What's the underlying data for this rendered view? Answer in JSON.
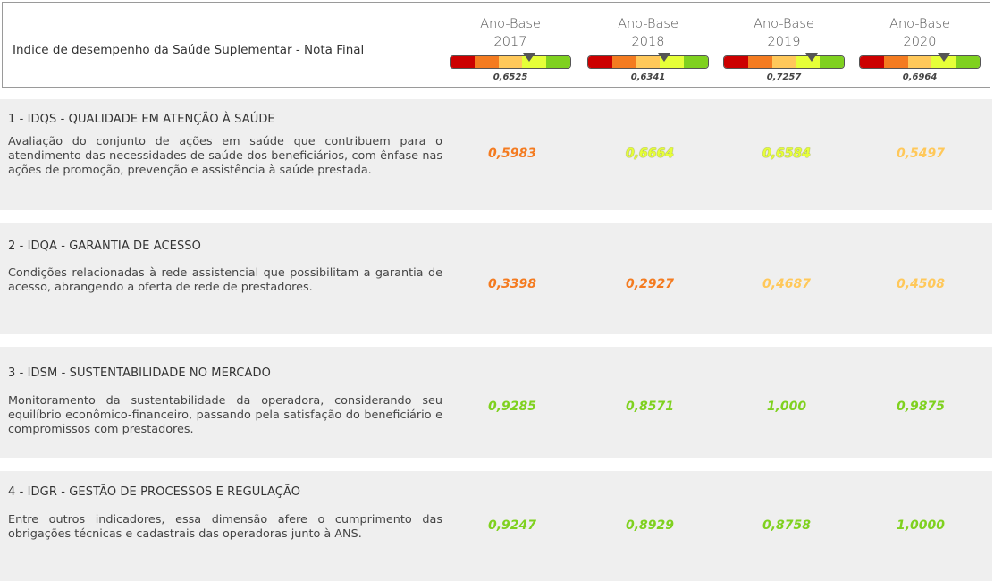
{
  "header": {
    "title": "Indice de desempenho da Saúde Suplementar - Nota Final",
    "years": [
      {
        "label_top": "Ano-Base",
        "label_year": "2017",
        "value": "0,6525",
        "gauge_level": 0.6525
      },
      {
        "label_top": "Ano-Base",
        "label_year": "2018",
        "value": "0,6341",
        "gauge_level": 0.6341
      },
      {
        "label_top": "Ano-Base",
        "label_year": "2019",
        "value": "0,7257",
        "gauge_level": 0.7257
      },
      {
        "label_top": "Ano-Base",
        "label_year": "2020",
        "value": "0,6964",
        "gauge_level": 0.6964
      }
    ],
    "gauge_colors": [
      "#cc0000",
      "#f47b20",
      "#ffc85a",
      "#e6ff38",
      "#7fd11f"
    ]
  },
  "sections": [
    {
      "title": "1 - IDQS - QUALIDADE EM ATENÇÃO À SAÚDE",
      "description": "Avaliação do conjunto de ações em saúde que contribuem para o atendimento das necessidades de saúde dos beneficiários, com ênfase nas ações de promoção, prevenção e assistência à saúde prestada.",
      "values": [
        {
          "text": "0,5983",
          "color": "orange"
        },
        {
          "text": "0,6664",
          "color": "lime"
        },
        {
          "text": "0,6584",
          "color": "lime"
        },
        {
          "text": "0,5497",
          "color": "yellow"
        }
      ]
    },
    {
      "title": "2 - IDQA - GARANTIA DE ACESSO",
      "description": "Condições relacionadas à rede assistencial que possibilitam a garantia de acesso, abrangendo a oferta de rede de prestadores.",
      "values": [
        {
          "text": "0,3398",
          "color": "orange"
        },
        {
          "text": "0,2927",
          "color": "orange"
        },
        {
          "text": "0,4687",
          "color": "yellow"
        },
        {
          "text": "0,4508",
          "color": "yellow"
        }
      ]
    },
    {
      "title": "3 - IDSM - SUSTENTABILIDADE NO MERCADO",
      "description": "Monitoramento da sustentabilidade da operadora, considerando seu equilíbrio econômico-financeiro, passando pela satisfação do beneficiário e compromissos com prestadores.",
      "values": [
        {
          "text": "0,9285",
          "color": "green"
        },
        {
          "text": "0,8571",
          "color": "green"
        },
        {
          "text": "1,000",
          "color": "green"
        },
        {
          "text": "0,9875",
          "color": "green"
        }
      ]
    },
    {
      "title": "4 - IDGR - GESTÃO DE PROCESSOS E REGULAÇÃO",
      "description": "Entre outros indicadores, essa dimensão afere o cumprimento das obrigações técnicas e cadastrais das operadoras junto à ANS.",
      "values": [
        {
          "text": "0,9247",
          "color": "green"
        },
        {
          "text": "0,8929",
          "color": "green"
        },
        {
          "text": "0,8758",
          "color": "green"
        },
        {
          "text": "1,0000",
          "color": "green"
        }
      ]
    }
  ]
}
